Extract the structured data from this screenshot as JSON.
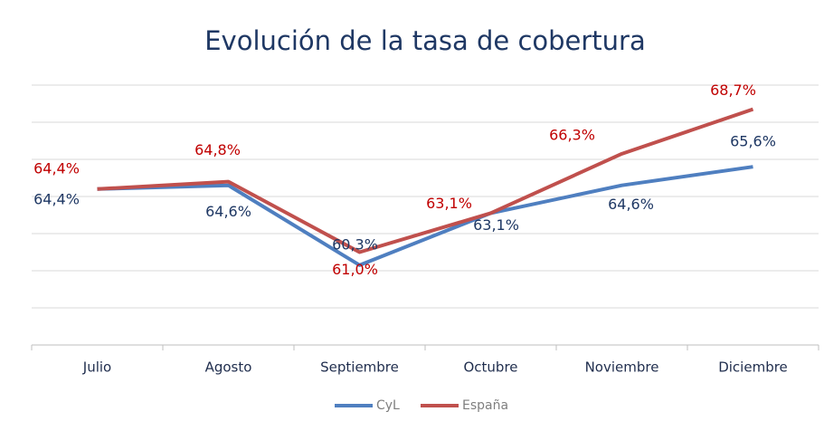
{
  "chart_data": {
    "type": "line",
    "title": "Evolución de la tasa de cobertura",
    "categories": [
      "Julio",
      "Agosto",
      "Septiembre",
      "Octubre",
      "Noviembre",
      "Diciembre"
    ],
    "series": [
      {
        "name": "CyL",
        "color": "#4f7fc0",
        "label_color": "#1f3864",
        "values": [
          64.4,
          64.6,
          60.3,
          63.1,
          64.6,
          65.6
        ],
        "value_labels": [
          "64,4%",
          "64,6%",
          "60,3%",
          "63,1%",
          "64,6%",
          "65,6%"
        ]
      },
      {
        "name": "España",
        "color": "#c0504d",
        "label_color": "#c00000",
        "values": [
          64.4,
          64.8,
          61.0,
          63.1,
          66.3,
          68.7
        ],
        "value_labels": [
          "64,4%",
          "64,8%",
          "61,0%",
          "63,1%",
          "66,3%",
          "68,7%"
        ]
      }
    ],
    "ylim": [
      56,
      70
    ],
    "yticks": [
      56,
      58,
      60,
      62,
      64,
      66,
      68,
      70
    ],
    "ytick_labels": false,
    "grid": true,
    "legend": "bottom"
  }
}
